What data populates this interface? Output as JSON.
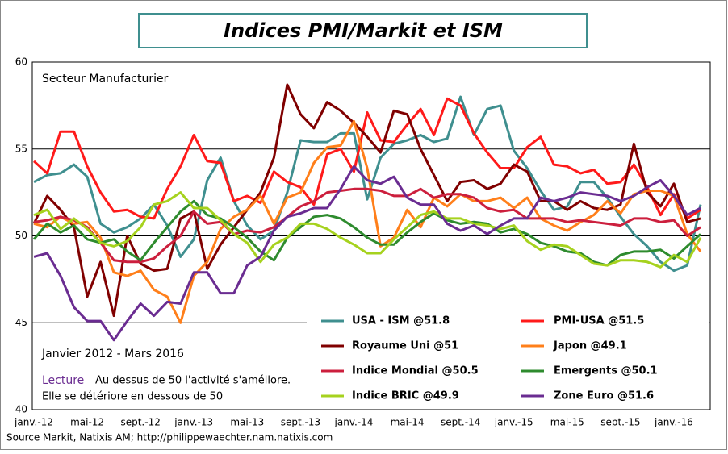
{
  "chart_data": {
    "type": "line",
    "title": "Indices PMI/Markit et ISM",
    "subtitle": "Secteur Manufacturier",
    "period": "Janvier 2012 - Mars 2016",
    "annotation_label": "Lecture",
    "annotation_lines": [
      "Au dessus de 50 l'activité s'améliore.",
      "Elle se détériore en dessous de 50"
    ],
    "source": "Source Markit, Natixis AM; http://philippewaechter.nam.natixis.com",
    "categories": [
      "janv.-12",
      null,
      null,
      null,
      "mai-12",
      null,
      null,
      null,
      "sept.-12",
      null,
      null,
      null,
      "janv.-13",
      null,
      null,
      null,
      "mai-13",
      null,
      null,
      null,
      "sept.-13",
      null,
      null,
      null,
      "janv.-14",
      null,
      null,
      null,
      "mai-14",
      null,
      null,
      null,
      "sept.-14",
      null,
      null,
      null,
      "janv.-15",
      null,
      null,
      null,
      "mai-15",
      null,
      null,
      null,
      "sept.-15",
      null,
      null,
      null,
      "janv.-16",
      null,
      null
    ],
    "ylim": [
      40,
      60
    ],
    "yticks": [
      40,
      45,
      50,
      55,
      60
    ],
    "grid": true,
    "series": [
      {
        "name": "USA - ISM @51.8",
        "color": "#3f8f8f",
        "values": [
          53.1,
          53.5,
          53.6,
          54.1,
          53.4,
          50.7,
          50.2,
          50.5,
          51.0,
          51.8,
          50.6,
          48.8,
          49.8,
          53.2,
          54.5,
          52.0,
          50.6,
          49.8,
          50.3,
          52.5,
          55.5,
          55.4,
          55.4,
          55.9,
          55.9,
          52.1,
          54.5,
          55.3,
          55.5,
          55.8,
          55.4,
          55.6,
          58.0,
          55.8,
          57.3,
          57.5,
          54.9,
          53.9,
          52.6,
          51.5,
          51.7,
          53.1,
          53.1,
          52.2,
          51.1,
          50.1,
          49.4,
          48.5,
          48.0,
          48.3,
          51.8
        ]
      },
      {
        "name": "PMI-USA @51.5",
        "color": "#ff1a1a",
        "values": [
          54.3,
          53.6,
          56.0,
          56.0,
          54.0,
          52.5,
          51.4,
          51.5,
          51.1,
          51.0,
          52.7,
          54.0,
          55.8,
          54.3,
          54.2,
          52.0,
          52.3,
          51.9,
          53.7,
          53.1,
          52.8,
          51.8,
          54.7,
          55.0,
          53.7,
          57.1,
          55.5,
          55.4,
          56.4,
          57.3,
          55.8,
          57.9,
          57.5,
          55.9,
          54.8,
          53.9,
          53.9,
          55.1,
          55.7,
          54.1,
          54.0,
          53.6,
          53.8,
          53.0,
          53.1,
          54.1,
          52.8,
          51.2,
          52.4,
          51.0,
          51.5
        ]
      },
      {
        "name": "Royaume Uni @51",
        "color": "#800000",
        "values": [
          50.7,
          52.3,
          51.5,
          50.5,
          46.5,
          48.5,
          45.4,
          50.0,
          48.4,
          48.0,
          48.1,
          51.0,
          51.4,
          48.1,
          49.5,
          50.5,
          51.5,
          52.5,
          54.5,
          58.7,
          57.0,
          56.2,
          57.7,
          57.2,
          56.5,
          55.7,
          54.8,
          57.2,
          57.0,
          55.0,
          53.5,
          52.0,
          53.1,
          53.2,
          52.7,
          53.0,
          54.1,
          53.7,
          52.0,
          52.0,
          51.5,
          52.0,
          51.6,
          51.5,
          51.8,
          55.3,
          52.5,
          51.7,
          53.0,
          50.8,
          51.0
        ]
      },
      {
        "name": "Japon @49.1",
        "color": "#ff7f1a",
        "values": [
          50.7,
          50.5,
          51.1,
          50.7,
          50.8,
          49.9,
          47.9,
          47.7,
          48.0,
          46.9,
          46.5,
          45.0,
          47.7,
          48.5,
          50.4,
          51.1,
          51.5,
          52.3,
          50.7,
          52.2,
          52.5,
          54.2,
          55.1,
          55.2,
          56.6,
          53.9,
          49.4,
          49.9,
          51.5,
          50.5,
          52.2,
          51.7,
          52.4,
          52.0,
          52.0,
          52.2,
          51.6,
          52.2,
          51.0,
          50.6,
          50.3,
          50.8,
          51.2,
          52.0,
          51.3,
          52.4,
          52.6,
          52.6,
          52.3,
          50.1,
          49.1
        ]
      },
      {
        "name": "Indice Mondial @50.5",
        "color": "#cc1f3d",
        "values": [
          50.8,
          50.9,
          51.1,
          50.9,
          50.5,
          49.6,
          48.6,
          48.5,
          48.5,
          48.7,
          49.4,
          50.0,
          51.4,
          50.7,
          50.8,
          50.1,
          50.3,
          50.2,
          50.5,
          51.1,
          51.7,
          52.0,
          52.5,
          52.6,
          52.7,
          52.7,
          52.6,
          52.3,
          52.3,
          52.7,
          52.2,
          52.4,
          52.4,
          52.2,
          51.6,
          51.4,
          51.5,
          51.0,
          51.0,
          51.0,
          50.8,
          50.9,
          50.8,
          50.7,
          50.6,
          51.0,
          51.0,
          50.8,
          50.9,
          50.0,
          50.5
        ]
      },
      {
        "name": "Emergents @50.1",
        "color": "#2e8b2e",
        "values": [
          49.8,
          50.7,
          50.2,
          50.6,
          49.8,
          49.6,
          49.8,
          49.1,
          48.6,
          49.6,
          50.5,
          51.4,
          52.0,
          51.2,
          51.0,
          50.5,
          49.9,
          49.1,
          48.6,
          49.9,
          50.5,
          51.1,
          51.2,
          51.0,
          50.5,
          49.9,
          49.5,
          49.5,
          50.2,
          50.8,
          51.3,
          50.9,
          50.7,
          50.8,
          50.7,
          50.2,
          50.4,
          50.1,
          49.6,
          49.4,
          49.1,
          49.0,
          48.5,
          48.3,
          48.9,
          49.1,
          49.1,
          49.2,
          48.7,
          49.4,
          50.1
        ]
      },
      {
        "name": "Indice BRIC @49.9",
        "color": "#a6d21e",
        "values": [
          51.2,
          51.5,
          50.4,
          51.0,
          50.4,
          49.6,
          49.4,
          49.7,
          50.5,
          51.8,
          52.0,
          52.5,
          51.6,
          51.6,
          50.9,
          50.1,
          49.6,
          48.5,
          49.5,
          49.9,
          50.7,
          50.7,
          50.4,
          49.9,
          49.5,
          49.0,
          49.0,
          49.8,
          50.5,
          51.2,
          51.4,
          51.0,
          51.0,
          50.7,
          50.6,
          50.4,
          50.6,
          49.7,
          49.2,
          49.5,
          49.4,
          48.9,
          48.4,
          48.3,
          48.6,
          48.6,
          48.5,
          48.2,
          48.9,
          48.5,
          49.9
        ]
      },
      {
        "name": "Zone Euro @51.6",
        "color": "#6a2c91",
        "values": [
          48.8,
          49.0,
          47.7,
          45.9,
          45.1,
          45.1,
          44.0,
          45.1,
          46.1,
          45.4,
          46.2,
          46.1,
          47.9,
          47.9,
          46.7,
          46.7,
          48.3,
          48.8,
          50.3,
          51.1,
          51.3,
          51.6,
          51.6,
          52.7,
          54.0,
          53.2,
          53.0,
          53.4,
          52.2,
          51.8,
          51.8,
          50.7,
          50.3,
          50.6,
          50.1,
          50.6,
          51.0,
          51.0,
          52.2,
          52.0,
          52.2,
          52.5,
          52.4,
          52.3,
          52.0,
          52.3,
          52.8,
          53.2,
          52.3,
          51.2,
          51.6
        ]
      }
    ]
  }
}
